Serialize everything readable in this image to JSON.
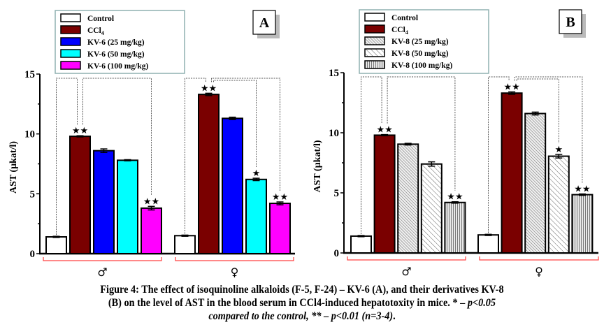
{
  "caption": {
    "line1": "Figure 4: The effect of isoquinoline alkaloids (F-5, F-24) – KV-6 (A), and their derivatives KV-8",
    "line2_bold": "(B) on the level of AST in the blood serum in CCl4-induced hepatotoxity in mice. * – ",
    "line2_italic": "p<0.05",
    "line3_italic": "compared to the control, ** – p<0.01 (n=3-4)",
    "line3_end": "."
  },
  "chart_data": [
    {
      "type": "bar",
      "panel_label": "A",
      "title": "",
      "xlabel": "",
      "ylabel": "AST (µkat/l)",
      "ylim": [
        0,
        15
      ],
      "yticks": [
        "0",
        "5",
        "10",
        "15"
      ],
      "grid": false,
      "legend_placement": "top-left",
      "categories": [
        "♂",
        "♀"
      ],
      "series": [
        {
          "name": "Control",
          "color": "#ffffff",
          "pattern": "none",
          "values": [
            1.4,
            1.5
          ],
          "errors": [
            0.05,
            0.05
          ],
          "sig": [
            "",
            ""
          ]
        },
        {
          "name": "CCl4",
          "color": "#7a0000",
          "pattern": "none",
          "values": [
            9.8,
            13.3
          ],
          "errors": [
            0.05,
            0.1
          ],
          "sig": [
            "**",
            "**"
          ]
        },
        {
          "name": "KV-6 (25 mg/kg)",
          "color": "#0000ff",
          "pattern": "none",
          "values": [
            8.6,
            11.3
          ],
          "errors": [
            0.15,
            0.1
          ],
          "sig": [
            "",
            ""
          ]
        },
        {
          "name": "KV-6 (50 mg/kg)",
          "color": "#00ffff",
          "pattern": "none",
          "values": [
            7.8,
            6.2
          ],
          "errors": [
            0.05,
            0.1
          ],
          "sig": [
            "",
            "*"
          ]
        },
        {
          "name": "KV-6 (100 mg/kg)",
          "color": "#ff00ff",
          "pattern": "none",
          "values": [
            3.8,
            4.2
          ],
          "errors": [
            0.15,
            0.12
          ],
          "sig": [
            "**",
            "**"
          ]
        }
      ]
    },
    {
      "type": "bar",
      "panel_label": "B",
      "title": "",
      "xlabel": "",
      "ylabel": "AST (µkat/l)",
      "ylim": [
        0,
        15
      ],
      "yticks": [
        "0",
        "5",
        "10",
        "15"
      ],
      "grid": false,
      "legend_placement": "top-left",
      "categories": [
        "♂",
        "♀"
      ],
      "series": [
        {
          "name": "Control",
          "color": "#ffffff",
          "pattern": "none",
          "values": [
            1.4,
            1.5
          ],
          "errors": [
            0.05,
            0.05
          ],
          "sig": [
            "",
            ""
          ]
        },
        {
          "name": "CCl4",
          "color": "#7a0000",
          "pattern": "none",
          "values": [
            9.8,
            13.3
          ],
          "errors": [
            0.05,
            0.1
          ],
          "sig": [
            "**",
            "**"
          ]
        },
        {
          "name": "KV-8 (25 mg/kg)",
          "color": "#e6e6e6",
          "pattern": "diag-dense",
          "values": [
            9.05,
            11.6
          ],
          "errors": [
            0.07,
            0.12
          ],
          "sig": [
            "",
            ""
          ]
        },
        {
          "name": "KV-8 (50 mg/kg)",
          "color": "#f4f4f4",
          "pattern": "diag-sparse",
          "values": [
            7.4,
            8.05
          ],
          "errors": [
            0.18,
            0.15
          ],
          "sig": [
            "",
            "*"
          ]
        },
        {
          "name": "KV-8 (100 mg/kg)",
          "color": "#dcdcdc",
          "pattern": "vertical",
          "values": [
            4.2,
            4.85
          ],
          "errors": [
            0.06,
            0.06
          ],
          "sig": [
            "**",
            "**"
          ]
        }
      ]
    }
  ],
  "colors": {
    "axis": "#000000",
    "bracket": "#ff4040",
    "legend_border": "#8fb0b0",
    "dotted": "#555555",
    "shadow": "#bbbbbb"
  }
}
